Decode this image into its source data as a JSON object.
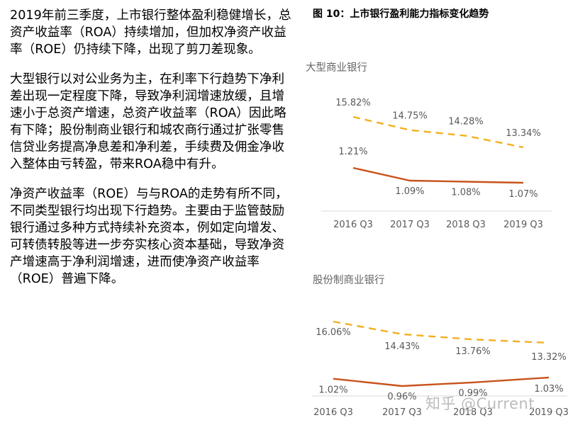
{
  "paragraphs": [
    "2019年前三季度，上市银行整体盈利稳健增长，总资产收益率（ROA）持续增加，但加权净资产收益率（ROE）仍持续下降，出现了剪刀差现象。",
    "大型银行以对公业务为主，在利率下行趋势下净利差出现一定程度下降，导致净利润增速放缓，且增速小于总资产增速，总资产收益率（ROA）因此略有下降；股份制商业银行和城农商行通过扩张零售信贷业务提高净息差和净利差，手续费及佣金净收入整体由亏转盈，带来ROA稳中有升。",
    "净资产收益率（ROE）与与ROA的走势有所不同，不同类型银行均出现下行趋势。主要由于监管鼓励银行通过多种方式持续补充资本，例如定向增发、可转债转股等进一步夯实核心资本基础，导致净资产增速高于净利润增速，进而使净资产收益率（ROE）普遍下降。"
  ],
  "figure_title": "图 10：上市银行盈利能力指标变化趋势",
  "watermark": "知乎 @Current",
  "colors": {
    "roe": "#F2B01E",
    "roa": "#C8531B",
    "axis": "#d9d9d9",
    "label": "#595959"
  },
  "chart_data": [
    {
      "type": "line",
      "title": "大型商业银行",
      "categories": [
        "2016 Q3",
        "2017 Q3",
        "2018 Q3",
        "2019 Q3"
      ],
      "series": [
        {
          "key": "roe",
          "values": [
            15.82,
            14.75,
            14.28,
            13.34
          ],
          "labels": [
            "15.82%",
            "14.75%",
            "14.28%",
            "13.34%"
          ],
          "style": "dashed"
        },
        {
          "key": "roa",
          "values": [
            1.21,
            1.09,
            1.08,
            1.07
          ],
          "labels": [
            "1.21%",
            "1.09%",
            "1.08%",
            "1.07%"
          ],
          "style": "solid"
        }
      ]
    },
    {
      "type": "line",
      "title": "股份制商业银行",
      "categories": [
        "2016 Q3",
        "2017 Q3",
        "2018 Q3",
        "2019 Q3"
      ],
      "series": [
        {
          "key": "roe",
          "values": [
            16.06,
            14.43,
            13.76,
            13.32
          ],
          "labels": [
            "16.06%",
            "14.43%",
            "13.76%",
            "13.32%"
          ],
          "style": "dashed"
        },
        {
          "key": "roa",
          "values": [
            1.02,
            0.96,
            0.99,
            1.03
          ],
          "labels": [
            "1.02%",
            "0.96%",
            "0.99%",
            "1.03%"
          ],
          "style": "solid"
        }
      ]
    }
  ]
}
